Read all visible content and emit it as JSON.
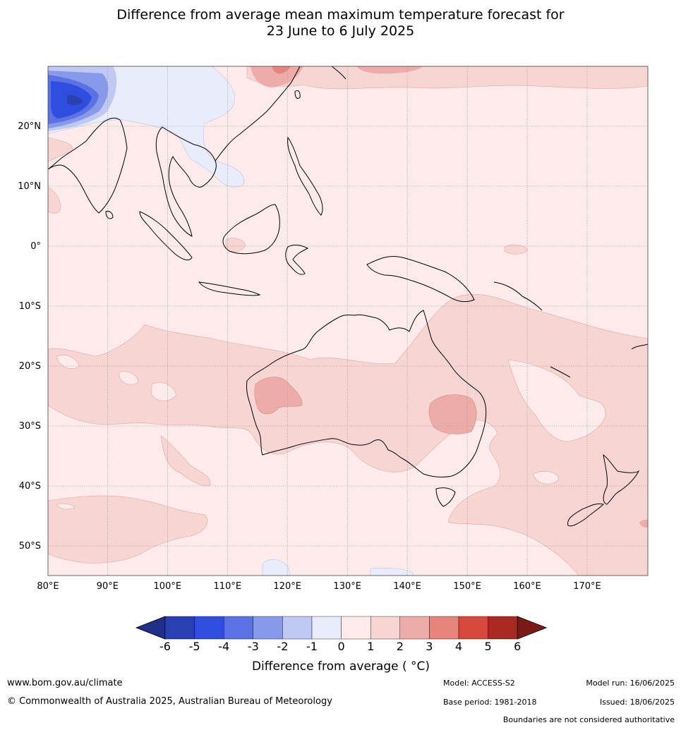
{
  "title": {
    "line1": "Difference from average mean maximum temperature forecast for",
    "line2": "23 June to 6 July 2025"
  },
  "map": {
    "lat_labels": [
      "20°N",
      "10°N",
      "0°",
      "10°S",
      "20°S",
      "30°S",
      "40°S",
      "50°S"
    ],
    "lon_labels": [
      "80°E",
      "90°E",
      "100°E",
      "110°E",
      "120°E",
      "130°E",
      "140°E",
      "150°E",
      "160°E",
      "170°E"
    ]
  },
  "colorbar": {
    "ticks": [
      "-6",
      "-5",
      "-4",
      "-3",
      "-2",
      "-1",
      "0",
      "1",
      "2",
      "3",
      "4",
      "5",
      "6"
    ],
    "colors": [
      "#1f2f8a",
      "#2a3fb0",
      "#2f4ee0",
      "#5c72e4",
      "#8799ea",
      "#c0c9f4",
      "#e9ecfb",
      "#fcebea",
      "#f6d5d3",
      "#eeaca8",
      "#e6837b",
      "#d8483c",
      "#a82a22",
      "#7a1a16"
    ],
    "label": "Difference from average ( °C)"
  },
  "footer": {
    "website": "www.bom.gov.au/climate",
    "copyright": "© Commonwealth of Australia 2025, Australian Bureau of Meteorology",
    "model": "Model: ACCESS-S2",
    "base_period": "Base period: 1981-2018",
    "model_run": "Model run: 16/06/2025",
    "issued": "Issued: 18/06/2025",
    "disclaimer": "Boundaries are not considered authoritative"
  }
}
